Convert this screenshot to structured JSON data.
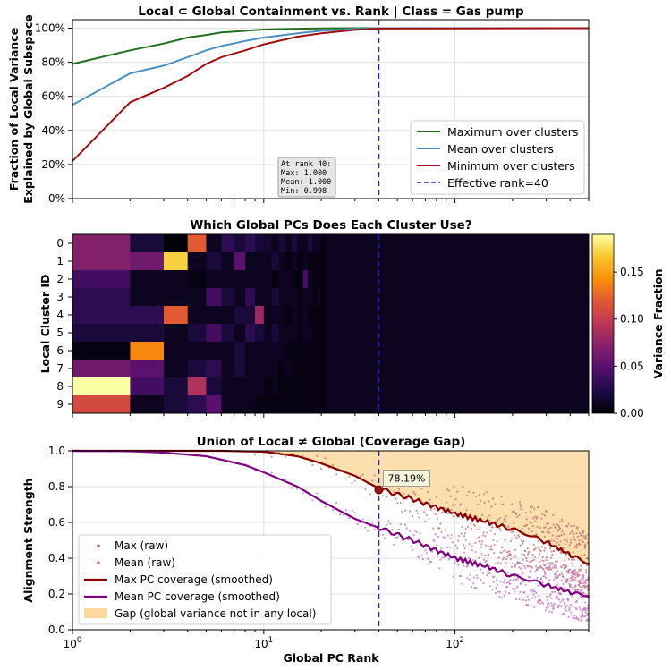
{
  "chart_data": [
    {
      "type": "line",
      "title": "Local ⊂ Global Containment vs. Rank | Class = Gas pump",
      "ylabel_lines": [
        "Fraction of Local Variance",
        "Explained by Global Subspace"
      ],
      "xscale": "log",
      "xlim": [
        1,
        500
      ],
      "ylim": [
        0,
        1.05
      ],
      "yticks": [
        "0%",
        "20%",
        "40%",
        "60%",
        "80%",
        "100%"
      ],
      "grid": true,
      "legend_position": "lower-right",
      "series": [
        {
          "name": "Maximum over clusters",
          "color": "#1f6f1f",
          "x": [
            1,
            2,
            3,
            4,
            5,
            6,
            8,
            10,
            15,
            20,
            30,
            40,
            500
          ],
          "y": [
            0.79,
            0.87,
            0.91,
            0.945,
            0.96,
            0.975,
            0.985,
            0.992,
            0.997,
            0.999,
            1.0,
            1.0,
            1.0
          ]
        },
        {
          "name": "Mean over clusters",
          "color": "#4a90c0",
          "x": [
            1,
            2,
            3,
            4,
            5,
            6,
            8,
            10,
            15,
            20,
            30,
            40,
            500
          ],
          "y": [
            0.55,
            0.735,
            0.78,
            0.83,
            0.87,
            0.895,
            0.925,
            0.945,
            0.97,
            0.985,
            0.996,
            1.0,
            1.0
          ]
        },
        {
          "name": "Minimum over clusters",
          "color": "#a01010",
          "x": [
            1,
            2,
            3,
            4,
            5,
            6,
            8,
            10,
            15,
            20,
            30,
            40,
            500
          ],
          "y": [
            0.22,
            0.565,
            0.65,
            0.72,
            0.79,
            0.83,
            0.87,
            0.905,
            0.95,
            0.97,
            0.99,
            0.998,
            1.0
          ]
        }
      ],
      "vline": {
        "x": 40,
        "label": "Effective rank=40",
        "color": "#1f1fd0"
      },
      "annotation": {
        "lines": [
          "At rank 40:",
          "Max: 1.000",
          "Mean: 1.000",
          "Min: 0.998"
        ]
      }
    },
    {
      "type": "heatmap",
      "title": "Which Global PCs Does Each Cluster Use?",
      "ylabel": "Local Cluster ID",
      "row_labels": [
        "0",
        "1",
        "2",
        "3",
        "4",
        "5",
        "6",
        "7",
        "8",
        "9"
      ],
      "xscale": "log",
      "xlim": [
        1,
        500
      ],
      "colormap": "inferno",
      "vmin": 0,
      "vmax": 0.19,
      "colorbar_label": "Variance Fraction",
      "colorbar_ticks": [
        "0.00",
        "0.05",
        "0.10",
        "0.15"
      ],
      "vline": {
        "x": 40
      },
      "values": [
        [
          0.07,
          0.02,
          0.002,
          0.12,
          0.01,
          0.03,
          0.02,
          0.03,
          0.02,
          0.015,
          0.01,
          0.02,
          0.01,
          0.02,
          0.01,
          0.01,
          0.02,
          0.01,
          0.01,
          0.005
        ],
        [
          0.07,
          0.06,
          0.17,
          0.01,
          0.02,
          0.01,
          0.05,
          0.01,
          0.01,
          0.01,
          0.02,
          0.01,
          0.005,
          0.01,
          0.005,
          0.01,
          0.005,
          0.005,
          0.005,
          0.005
        ],
        [
          0.04,
          0.01,
          0.01,
          0.005,
          0.01,
          0.01,
          0.01,
          0.01,
          0.01,
          0.01,
          0.005,
          0.01,
          0.01,
          0.005,
          0.005,
          0.04,
          0.01,
          0.005,
          0.005,
          0.005
        ],
        [
          0.03,
          0.01,
          0.01,
          0.01,
          0.04,
          0.02,
          0.01,
          0.03,
          0.01,
          0.01,
          0.02,
          0.01,
          0.01,
          0.01,
          0.005,
          0.01,
          0.01,
          0.005,
          0.01,
          0.005
        ],
        [
          0.03,
          0.03,
          0.12,
          0.01,
          0.01,
          0.01,
          0.02,
          0.02,
          0.08,
          0.01,
          0.01,
          0.01,
          0.005,
          0.01,
          0.005,
          0.01,
          0.005,
          0.005,
          0.005,
          0.005
        ],
        [
          0.02,
          0.02,
          0.01,
          0.02,
          0.04,
          0.02,
          0.01,
          0.03,
          0.02,
          0.01,
          0.02,
          0.01,
          0.01,
          0.01,
          0.005,
          0.01,
          0.01,
          0.005,
          0.005,
          0.005
        ],
        [
          0.005,
          0.14,
          0.01,
          0.01,
          0.01,
          0.01,
          0.02,
          0.01,
          0.01,
          0.01,
          0.01,
          0.01,
          0.005,
          0.005,
          0.005,
          0.005,
          0.005,
          0.005,
          0.005,
          0.005
        ],
        [
          0.06,
          0.05,
          0.01,
          0.02,
          0.03,
          0.01,
          0.02,
          0.01,
          0.01,
          0.01,
          0.01,
          0.005,
          0.01,
          0.005,
          0.005,
          0.005,
          0.005,
          0.005,
          0.005,
          0.005
        ],
        [
          0.19,
          0.04,
          0.02,
          0.09,
          0.02,
          0.01,
          0.01,
          0.01,
          0.01,
          0.005,
          0.01,
          0.005,
          0.005,
          0.005,
          0.005,
          0.005,
          0.005,
          0.005,
          0.005,
          0.005
        ],
        [
          0.11,
          0.01,
          0.02,
          0.03,
          0.05,
          0.01,
          0.01,
          0.01,
          0.005,
          0.005,
          0.005,
          0.005,
          0.005,
          0.005,
          0.005,
          0.005,
          0.005,
          0.005,
          0.005,
          0.005
        ]
      ]
    },
    {
      "type": "line",
      "title": "Union of Local ≠ Global (Coverage Gap)",
      "xlabel": "Global PC Rank",
      "ylabel": "Alignment Strength",
      "xscale": "log",
      "xlim": [
        1,
        500
      ],
      "ylim": [
        0,
        1.0
      ],
      "yticks": [
        "0.0",
        "0.2",
        "0.4",
        "0.6",
        "0.8",
        "1.0"
      ],
      "xticks": [
        "10^0",
        "10^1",
        "10^2"
      ],
      "grid": true,
      "legend_position": "lower-left",
      "series": [
        {
          "name": "Max (raw)",
          "color": "#c07070",
          "style": "points"
        },
        {
          "name": "Mean (raw)",
          "color": "#c070c0",
          "style": "points"
        },
        {
          "name": "Max PC coverage (smoothed)",
          "color": "#8b0000",
          "x": [
            1,
            3,
            6,
            10,
            15,
            20,
            30,
            40,
            60,
            100,
            150,
            200,
            300,
            400,
            500
          ],
          "y": [
            1.0,
            1.0,
            1.0,
            0.995,
            0.97,
            0.93,
            0.86,
            0.79,
            0.73,
            0.65,
            0.6,
            0.56,
            0.49,
            0.42,
            0.36
          ]
        },
        {
          "name": "Mean PC coverage (smoothed)",
          "color": "#800080",
          "x": [
            1,
            2,
            3,
            5,
            8,
            10,
            15,
            20,
            30,
            40,
            60,
            100,
            150,
            200,
            300,
            400,
            500
          ],
          "y": [
            1.0,
            0.998,
            0.99,
            0.97,
            0.92,
            0.88,
            0.8,
            0.72,
            0.62,
            0.57,
            0.5,
            0.4,
            0.35,
            0.3,
            0.25,
            0.21,
            0.18
          ]
        },
        {
          "name": "Gap (global variance not in any local)",
          "color": "#fdd9a0",
          "style": "fill"
        }
      ],
      "vline": {
        "x": 40,
        "color": "#1f1fd0"
      },
      "marker": {
        "x": 40,
        "y": 0.7819,
        "label": "78.19%"
      }
    }
  ]
}
